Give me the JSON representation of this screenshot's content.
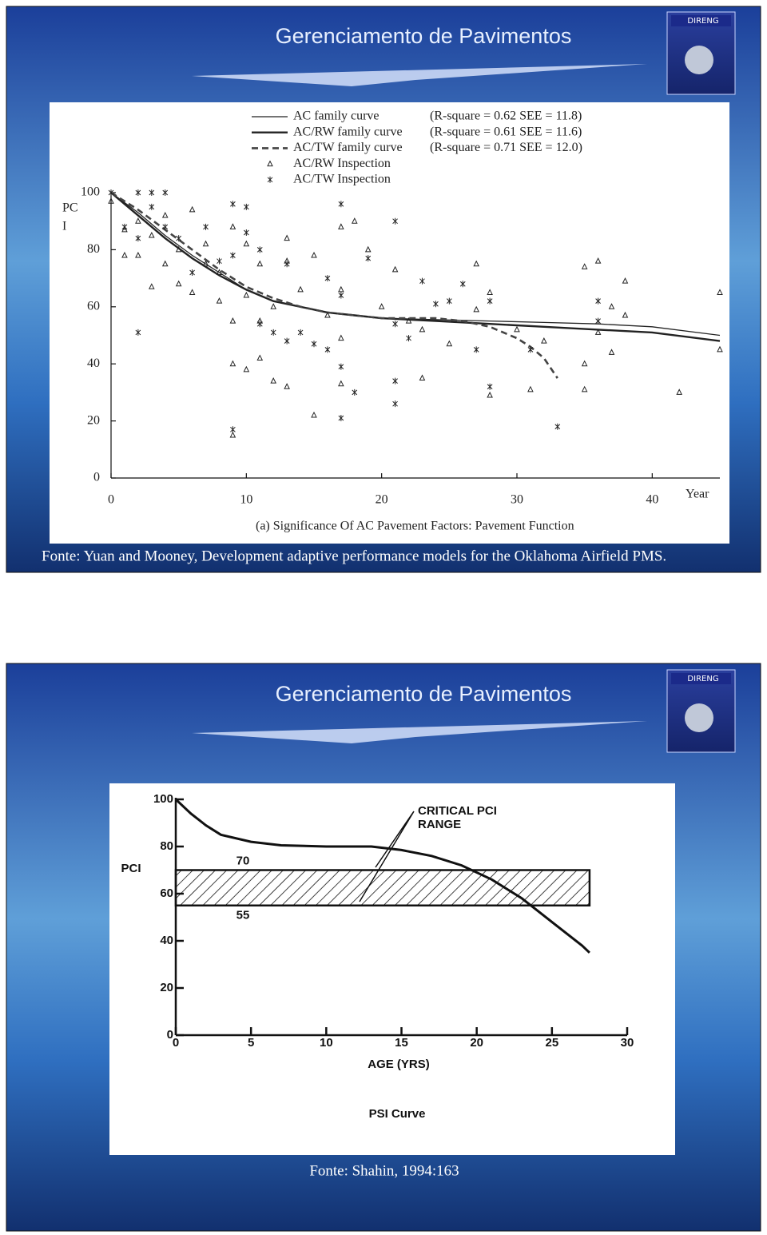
{
  "slides": [
    {
      "title": "Gerenciamento de Pavimentos",
      "logo": "DIRENG",
      "source": "Fonte: Yuan and Mooney, Development adaptive performance models for the Oklahoma Airfield PMS."
    },
    {
      "title": "Gerenciamento de Pavimentos",
      "logo": "DIRENG",
      "source": "Fonte: Shahin, 1994:163"
    }
  ],
  "chart_data": [
    {
      "type": "scatter",
      "caption": "(a) Significance Of AC Pavement Factors: Pavement Function",
      "ylabel": [
        "PC",
        "I"
      ],
      "xlabel": "Year",
      "xlim": [
        0,
        45
      ],
      "ylim": [
        0,
        100
      ],
      "xticks": [
        0,
        10,
        20,
        30,
        40
      ],
      "yticks": [
        0,
        20,
        40,
        60,
        80,
        100
      ],
      "series": [
        {
          "name": "AC family curve",
          "fit": "(R-square = 0.62 SEE = 11.8)",
          "type": "line",
          "line_style": "solid",
          "line_width": 1.3,
          "color": "#222222",
          "x": [
            0,
            2,
            4,
            6,
            8,
            10,
            12,
            14,
            16,
            18,
            20,
            24,
            28,
            32,
            36,
            40,
            45
          ],
          "values": [
            100,
            93,
            85,
            78,
            72,
            66,
            62,
            60,
            58,
            57,
            56,
            55.5,
            55,
            54.5,
            54,
            53,
            50
          ]
        },
        {
          "name": "AC/RW family curve",
          "fit": "(R-square = 0.61 SEE = 11.6)",
          "type": "line",
          "line_style": "solid",
          "line_width": 2.4,
          "color": "#222222",
          "x": [
            0,
            2,
            4,
            6,
            8,
            10,
            12,
            14,
            16,
            18,
            20,
            24,
            28,
            32,
            36,
            40,
            45
          ],
          "values": [
            100,
            92,
            84,
            77,
            71,
            66,
            62,
            60,
            58,
            57,
            56,
            55,
            54,
            53,
            52,
            51,
            48
          ]
        },
        {
          "name": "AC/TW family curve",
          "fit": "(R-square = 0.71 SEE = 12.0)",
          "type": "line",
          "line_style": "dashed",
          "line_width": 2.6,
          "color": "#444444",
          "x": [
            0,
            2,
            4,
            6,
            8,
            10,
            12,
            14,
            16,
            18,
            20,
            22,
            24,
            26,
            28,
            30,
            31,
            32,
            33
          ],
          "values": [
            100,
            94,
            87,
            80,
            73,
            67,
            63,
            60,
            58,
            57,
            56,
            56,
            56,
            55,
            53,
            49,
            46,
            42,
            35
          ]
        },
        {
          "name": "AC/RW Inspection",
          "type": "scatter",
          "marker": "triangle",
          "color": "#222222",
          "x": [
            0,
            1,
            1,
            2,
            2,
            3,
            3,
            4,
            4,
            5,
            5,
            6,
            6,
            7,
            7,
            8,
            8,
            9,
            9,
            9,
            9,
            10,
            10,
            10,
            11,
            11,
            11,
            12,
            12,
            13,
            13,
            13,
            14,
            15,
            15,
            16,
            17,
            17,
            17,
            17,
            18,
            19,
            20,
            21,
            22,
            23,
            23,
            25,
            27,
            27,
            28,
            28,
            30,
            31,
            32,
            35,
            35,
            35,
            36,
            36,
            37,
            37,
            38,
            38,
            42,
            45,
            45
          ],
          "values": [
            97,
            87,
            78,
            90,
            78,
            85,
            67,
            92,
            75,
            80,
            68,
            94,
            65,
            82,
            75,
            72,
            62,
            88,
            55,
            40,
            15,
            82,
            64,
            38,
            75,
            55,
            42,
            60,
            34,
            84,
            76,
            32,
            66,
            78,
            22,
            57,
            88,
            66,
            49,
            33,
            90,
            80,
            60,
            73,
            55,
            52,
            35,
            47,
            75,
            59,
            65,
            29,
            52,
            31,
            48,
            74,
            40,
            31,
            76,
            51,
            60,
            44,
            69,
            57,
            30,
            65,
            45
          ]
        },
        {
          "name": "AC/TW Inspection",
          "type": "scatter",
          "marker": "star",
          "color": "#222222",
          "x": [
            0,
            1,
            2,
            2,
            2,
            3,
            3,
            4,
            4,
            5,
            6,
            7,
            8,
            9,
            9,
            9,
            10,
            10,
            11,
            11,
            12,
            13,
            13,
            14,
            15,
            16,
            16,
            17,
            17,
            17,
            17,
            18,
            19,
            21,
            21,
            21,
            21,
            22,
            23,
            24,
            25,
            26,
            27,
            28,
            28,
            31,
            33,
            36,
            36
          ],
          "values": [
            100,
            88,
            100,
            84,
            51,
            100,
            95,
            100,
            88,
            84,
            72,
            88,
            76,
            96,
            78,
            17,
            95,
            86,
            80,
            54,
            51,
            75,
            48,
            51,
            47,
            70,
            45,
            96,
            64,
            39,
            21,
            30,
            77,
            90,
            54,
            34,
            26,
            49,
            69,
            61,
            62,
            68,
            45,
            62,
            32,
            45,
            18,
            62,
            55
          ]
        }
      ]
    },
    {
      "type": "line",
      "title": "PSI Curve",
      "ylabel": "PCI",
      "xlabel": "AGE (YRS)",
      "xlim": [
        0,
        30
      ],
      "ylim": [
        0,
        100
      ],
      "xticks": [
        0,
        5,
        10,
        15,
        20,
        25,
        30
      ],
      "yticks": [
        0,
        20,
        40,
        60,
        80,
        100
      ],
      "annotation": [
        "CRITICAL PCI",
        "RANGE"
      ],
      "band": {
        "low": 55,
        "high": 70,
        "x": [
          0,
          27.5
        ]
      },
      "series": [
        {
          "type": "line",
          "color": "#111111",
          "line_width": 3,
          "x": [
            0,
            1,
            2,
            3,
            5,
            7,
            10,
            13,
            15,
            17,
            19,
            21,
            23,
            25,
            27,
            27.5
          ],
          "values": [
            100,
            94,
            89,
            85,
            82,
            80.5,
            80,
            80,
            78.5,
            76,
            72,
            66,
            58,
            48,
            38,
            35
          ]
        }
      ]
    }
  ]
}
